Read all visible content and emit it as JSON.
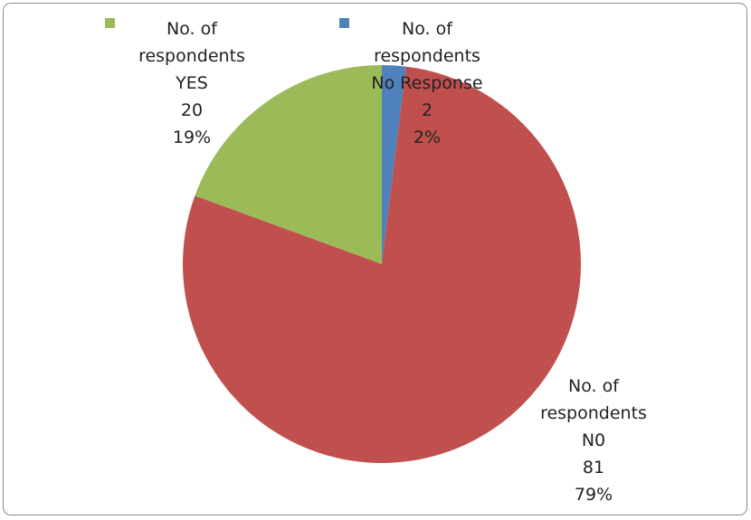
{
  "chart_data": {
    "type": "pie",
    "title": "",
    "slices": [
      {
        "label_lines": [
          "No. of",
          "respondents",
          "No Response",
          "2",
          "2%"
        ],
        "category": "No Response",
        "value": 2,
        "percent": "2%",
        "color": "#4f81bd"
      },
      {
        "label_lines": [
          "No. of",
          "respondents",
          "N0",
          "81",
          "79%"
        ],
        "category": "N0",
        "value": 81,
        "percent": "79%",
        "color": "#c0504d"
      },
      {
        "label_lines": [
          "No. of",
          "respondents",
          "YES",
          "20",
          "19%"
        ],
        "category": "YES",
        "value": 20,
        "percent": "19%",
        "color": "#9bbb59"
      }
    ],
    "legend_placement": "inline-labels",
    "grid": false
  }
}
